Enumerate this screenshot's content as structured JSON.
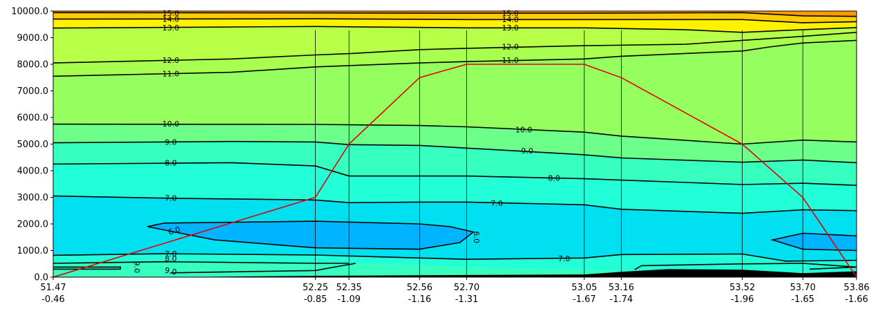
{
  "chart_data": {
    "type": "contour",
    "x_stations": [
      {
        "lat": "51.47",
        "lon": "-0.46",
        "x": 51.47
      },
      {
        "lat": "52.25",
        "lon": "-0.85",
        "x": 52.25
      },
      {
        "lat": "52.35",
        "lon": "-1.09",
        "x": 52.35
      },
      {
        "lat": "52.56",
        "lon": "-1.16",
        "x": 52.56
      },
      {
        "lat": "52.70",
        "lon": "-1.31",
        "x": 52.7
      },
      {
        "lat": "53.05",
        "lon": "-1.67",
        "x": 53.05
      },
      {
        "lat": "53.16",
        "lon": "-1.74",
        "x": 53.16
      },
      {
        "lat": "53.52",
        "lon": "-1.96",
        "x": 53.52
      },
      {
        "lat": "53.70",
        "lon": "-1.65",
        "x": 53.7
      },
      {
        "lat": "53.86",
        "lon": "-1.66",
        "x": 53.86
      }
    ],
    "xlim": [
      51.47,
      53.86
    ],
    "ylim": [
      0,
      10000
    ],
    "y_ticks": [
      "0.0",
      "1000.0",
      "2000.0",
      "3000.0",
      "4000.0",
      "5000.0",
      "6000.0",
      "7000.0",
      "8000.0",
      "9000.0",
      "10000.0"
    ],
    "y_tick_values": [
      0,
      1000,
      2000,
      3000,
      4000,
      5000,
      6000,
      7000,
      8000,
      9000,
      10000
    ],
    "colors": {
      "band_ge15": "#ff9a00",
      "band_14": "#ffcc00",
      "band_13": "#fff200",
      "band_12": "#b8ff48",
      "band_11": "#a8ff50",
      "band_10": "#96ff60",
      "band_9": "#6cff8a",
      "band_8": "#36ffc0",
      "band_7": "#22ffd8",
      "band_6": "#00e0f0",
      "band_lt6": "#00b4ff",
      "terrain": "#000000",
      "flight_path": "#e00000",
      "contour": "#000000"
    },
    "contours": [
      {
        "level": 15.0,
        "label": "15.0",
        "points": [
          [
            51.47,
            9940
          ],
          [
            52.25,
            9930
          ],
          [
            52.7,
            9920
          ],
          [
            53.05,
            9920
          ],
          [
            53.52,
            9940
          ],
          [
            53.7,
            9820
          ],
          [
            53.86,
            9800
          ]
        ]
      },
      {
        "level": 14.0,
        "label": "14.0",
        "points": [
          [
            51.47,
            9700
          ],
          [
            52.25,
            9710
          ],
          [
            52.7,
            9680
          ],
          [
            53.05,
            9680
          ],
          [
            53.52,
            9680
          ],
          [
            53.7,
            9560
          ],
          [
            53.86,
            9600
          ]
        ]
      },
      {
        "level": 13.0,
        "label": "13.0",
        "points": [
          [
            51.47,
            9360
          ],
          [
            52.25,
            9420
          ],
          [
            52.7,
            9370
          ],
          [
            53.05,
            9370
          ],
          [
            53.35,
            9300
          ],
          [
            53.52,
            9200
          ],
          [
            53.7,
            9300
          ],
          [
            53.86,
            9380
          ]
        ]
      },
      {
        "level": 12.0,
        "label": "12.0",
        "points": [
          [
            51.47,
            8050
          ],
          [
            52.0,
            8200
          ],
          [
            52.25,
            8350
          ],
          [
            52.35,
            8400
          ],
          [
            52.56,
            8550
          ],
          [
            52.7,
            8600
          ],
          [
            53.05,
            8700
          ],
          [
            53.35,
            8750
          ],
          [
            53.52,
            8900
          ],
          [
            53.7,
            9050
          ],
          [
            53.86,
            9200
          ]
        ]
      },
      {
        "level": 11.0,
        "label": "11.0",
        "points": [
          [
            51.47,
            7550
          ],
          [
            52.0,
            7700
          ],
          [
            52.25,
            7900
          ],
          [
            52.35,
            7950
          ],
          [
            52.56,
            8050
          ],
          [
            52.7,
            8100
          ],
          [
            53.05,
            8200
          ],
          [
            53.16,
            8300
          ],
          [
            53.52,
            8500
          ],
          [
            53.6,
            8650
          ],
          [
            53.7,
            8800
          ],
          [
            53.86,
            8900
          ]
        ]
      },
      {
        "level": 10.0,
        "label": "10.0",
        "points": [
          [
            51.47,
            5750
          ],
          [
            52.25,
            5740
          ],
          [
            52.56,
            5700
          ],
          [
            52.7,
            5650
          ],
          [
            53.05,
            5450
          ],
          [
            53.16,
            5300
          ],
          [
            53.52,
            5000
          ],
          [
            53.7,
            5150
          ],
          [
            53.86,
            5080
          ]
        ]
      },
      {
        "level": 9.0,
        "label": "9.0",
        "points": [
          [
            51.47,
            5050
          ],
          [
            52.0,
            5100
          ],
          [
            52.25,
            5080
          ],
          [
            52.35,
            4980
          ],
          [
            52.56,
            4950
          ],
          [
            52.7,
            4850
          ],
          [
            53.05,
            4600
          ],
          [
            53.16,
            4480
          ],
          [
            53.52,
            4320
          ],
          [
            53.7,
            4400
          ],
          [
            53.86,
            4300
          ]
        ]
      },
      {
        "level": 8.0,
        "label": "8.0",
        "points": [
          [
            51.47,
            4250
          ],
          [
            52.0,
            4300
          ],
          [
            52.25,
            4180
          ],
          [
            52.35,
            3800
          ],
          [
            52.7,
            3800
          ],
          [
            53.05,
            3700
          ],
          [
            53.52,
            3480
          ],
          [
            53.7,
            3530
          ],
          [
            53.86,
            3450
          ]
        ]
      },
      {
        "level": 7.0,
        "label": "7.0",
        "points": [
          [
            51.47,
            3050
          ],
          [
            51.8,
            2970
          ],
          [
            52.25,
            2900
          ],
          [
            52.35,
            2800
          ],
          [
            52.56,
            2820
          ],
          [
            52.7,
            2820
          ],
          [
            53.05,
            2720
          ],
          [
            53.16,
            2550
          ],
          [
            53.52,
            2400
          ],
          [
            53.7,
            2530
          ],
          [
            53.86,
            2500
          ]
        ]
      },
      {
        "level": 6.0,
        "label": "6.0",
        "points": [
          [
            51.75,
            1900
          ],
          [
            51.8,
            2030
          ],
          [
            52.25,
            2100
          ],
          [
            52.56,
            2000
          ],
          [
            52.65,
            1900
          ],
          [
            52.72,
            1700
          ],
          [
            52.68,
            1300
          ],
          [
            52.56,
            1050
          ],
          [
            52.25,
            1100
          ],
          [
            51.95,
            1400
          ],
          [
            51.75,
            1900
          ]
        ]
      },
      {
        "level": 6.0,
        "label": "",
        "points": [
          [
            53.86,
            1550
          ],
          [
            53.7,
            1650
          ],
          [
            53.61,
            1400
          ],
          [
            53.7,
            1050
          ],
          [
            53.86,
            1000
          ]
        ]
      },
      {
        "level": 7.0,
        "label": "7.0",
        "points": [
          [
            51.47,
            820
          ],
          [
            51.8,
            880
          ],
          [
            52.25,
            830
          ],
          [
            52.56,
            720
          ],
          [
            52.7,
            670
          ],
          [
            53.05,
            720
          ],
          [
            53.16,
            850
          ],
          [
            53.52,
            870
          ],
          [
            53.65,
            600
          ],
          [
            53.71,
            610
          ],
          [
            53.86,
            630
          ]
        ]
      },
      {
        "level": 8.0,
        "label": "8.0",
        "points": [
          [
            51.47,
            520
          ],
          [
            51.8,
            580
          ],
          [
            52.25,
            520
          ],
          [
            52.35,
            520
          ]
        ]
      },
      {
        "level": 9.0,
        "label": "9.0",
        "points": [
          [
            51.47,
            380
          ],
          [
            51.67,
            380
          ],
          [
            51.67,
            300
          ],
          [
            51.47,
            300
          ]
        ]
      },
      {
        "level": 9.0,
        "label": "9.0",
        "points": [
          [
            51.82,
            160
          ],
          [
            52.25,
            250
          ],
          [
            52.33,
            430
          ],
          [
            52.37,
            520
          ]
        ]
      },
      {
        "level": 8.0,
        "label": "",
        "points": [
          [
            53.2,
            280
          ],
          [
            53.22,
            430
          ],
          [
            53.52,
            500
          ],
          [
            53.7,
            520
          ],
          [
            53.86,
            380
          ],
          [
            53.72,
            300
          ]
        ]
      }
    ],
    "contour_labels": [
      {
        "text": "15.0",
        "x": 51.82,
        "y": 9920,
        "rot": 0
      },
      {
        "text": "14.0",
        "x": 51.82,
        "y": 9700,
        "rot": 0
      },
      {
        "text": "13.0",
        "x": 51.82,
        "y": 9380,
        "rot": 0
      },
      {
        "text": "12.0",
        "x": 51.82,
        "y": 8150,
        "rot": 0
      },
      {
        "text": "11.0",
        "x": 51.82,
        "y": 7650,
        "rot": 0
      },
      {
        "text": "10.0",
        "x": 51.82,
        "y": 5760,
        "rot": 0
      },
      {
        "text": "9.0",
        "x": 51.82,
        "y": 5080,
        "rot": 0
      },
      {
        "text": "8.0",
        "x": 51.82,
        "y": 4300,
        "rot": 0
      },
      {
        "text": "7.0",
        "x": 51.82,
        "y": 2970,
        "rot": 0
      },
      {
        "text": "6.0",
        "x": 51.83,
        "y": 1750,
        "rot": 18
      },
      {
        "text": "7.0",
        "x": 51.82,
        "y": 880,
        "rot": 0
      },
      {
        "text": "8.0",
        "x": 51.82,
        "y": 700,
        "rot": 0
      },
      {
        "text": "9.0",
        "x": 51.72,
        "y": 380,
        "rot": -90
      },
      {
        "text": "9.0",
        "x": 51.82,
        "y": 230,
        "rot": -12
      },
      {
        "text": "15.0",
        "x": 52.83,
        "y": 9920,
        "rot": 0
      },
      {
        "text": "14.0",
        "x": 52.83,
        "y": 9690,
        "rot": 0
      },
      {
        "text": "13.0",
        "x": 52.83,
        "y": 9380,
        "rot": 0
      },
      {
        "text": "12.0",
        "x": 52.83,
        "y": 8660,
        "rot": 0
      },
      {
        "text": "11.0",
        "x": 52.83,
        "y": 8150,
        "rot": 0
      },
      {
        "text": "10.0",
        "x": 52.87,
        "y": 5550,
        "rot": 0
      },
      {
        "text": "9.0",
        "x": 52.88,
        "y": 4750,
        "rot": 0
      },
      {
        "text": "8.0",
        "x": 52.96,
        "y": 3730,
        "rot": 0
      },
      {
        "text": "7.0",
        "x": 52.79,
        "y": 2780,
        "rot": 0
      },
      {
        "text": "6.0",
        "x": 52.73,
        "y": 1500,
        "rot": -90
      },
      {
        "text": "7.0",
        "x": 52.99,
        "y": 700,
        "rot": 0
      }
    ],
    "flight_path": [
      [
        51.47,
        0
      ],
      [
        52.25,
        3000
      ],
      [
        52.35,
        5000
      ],
      [
        52.56,
        7500
      ],
      [
        52.7,
        8000
      ],
      [
        53.05,
        8000
      ],
      [
        53.16,
        7500
      ],
      [
        53.52,
        5000
      ],
      [
        53.7,
        3000
      ],
      [
        53.86,
        0
      ]
    ],
    "terrain": [
      [
        51.47,
        0
      ],
      [
        51.8,
        0
      ],
      [
        52.25,
        50
      ],
      [
        52.7,
        80
      ],
      [
        53.05,
        100
      ],
      [
        53.16,
        200
      ],
      [
        53.3,
        300
      ],
      [
        53.52,
        280
      ],
      [
        53.7,
        150
      ],
      [
        53.86,
        220
      ]
    ]
  }
}
